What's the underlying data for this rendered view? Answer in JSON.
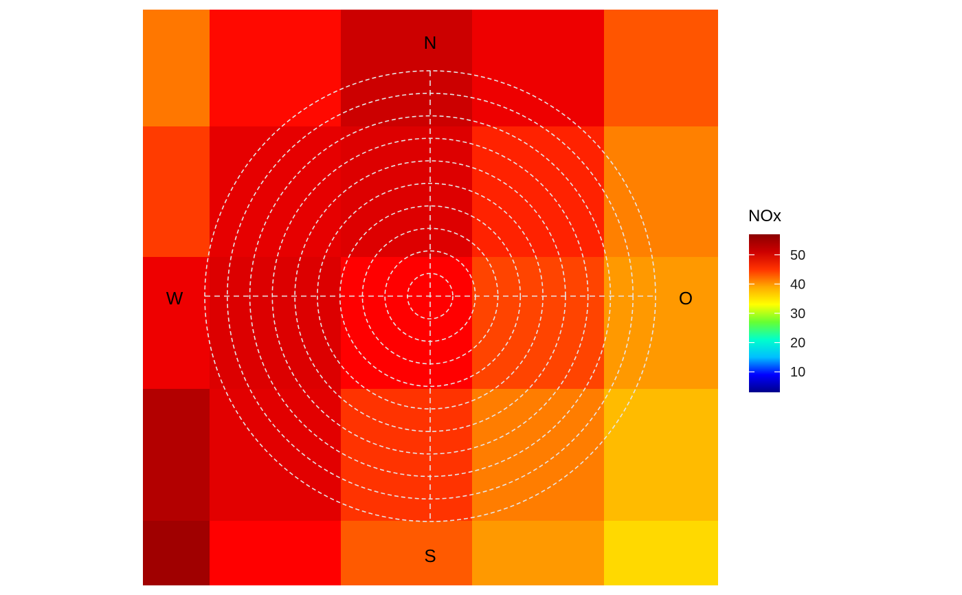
{
  "chart_data": {
    "type": "heatmap",
    "title": "",
    "xlabel": "",
    "ylabel": "",
    "compass": {
      "north": "N",
      "south": "S",
      "west": "W",
      "east": "O"
    },
    "grid": {
      "rows": 5,
      "cols": 5,
      "cell_colors": [
        [
          "#ff7700",
          "#ff0900",
          "#cc0000",
          "#ee0000",
          "#ff5500"
        ],
        [
          "#ff3b00",
          "#e60000",
          "#dd0000",
          "#ff2200",
          "#ff8000"
        ],
        [
          "#ee0000",
          "#dc0000",
          "#ff0000",
          "#ff4400",
          "#ff9900"
        ],
        [
          "#b30000",
          "#e20000",
          "#ff3300",
          "#ff7d00",
          "#ffbb00"
        ],
        [
          "#a00000",
          "#ff0000",
          "#ff5a00",
          "#ff9900",
          "#ffd900"
        ]
      ],
      "values": [
        [
          46,
          52,
          55,
          53,
          48
        ],
        [
          49,
          54,
          55,
          50,
          44
        ],
        [
          53,
          54,
          52,
          48,
          42
        ],
        [
          57,
          54,
          50,
          45,
          38
        ],
        [
          58,
          52,
          47,
          43,
          35
        ]
      ]
    },
    "rings": {
      "count": 10,
      "color": "#e6e6e6",
      "style": "dashed"
    },
    "legend": {
      "title": "NOx",
      "placement": "right",
      "range": [
        3,
        57
      ],
      "ticks": [
        10,
        20,
        30,
        40,
        50
      ],
      "tick_labels": [
        "10",
        "20",
        "30",
        "40",
        "50"
      ],
      "gradient_stops": [
        "#00008b",
        "#0000ff",
        "#00bfff",
        "#00ffcc",
        "#66ff33",
        "#ffff00",
        "#ffaa00",
        "#ff3300",
        "#cc0000",
        "#8b0000"
      ]
    }
  }
}
